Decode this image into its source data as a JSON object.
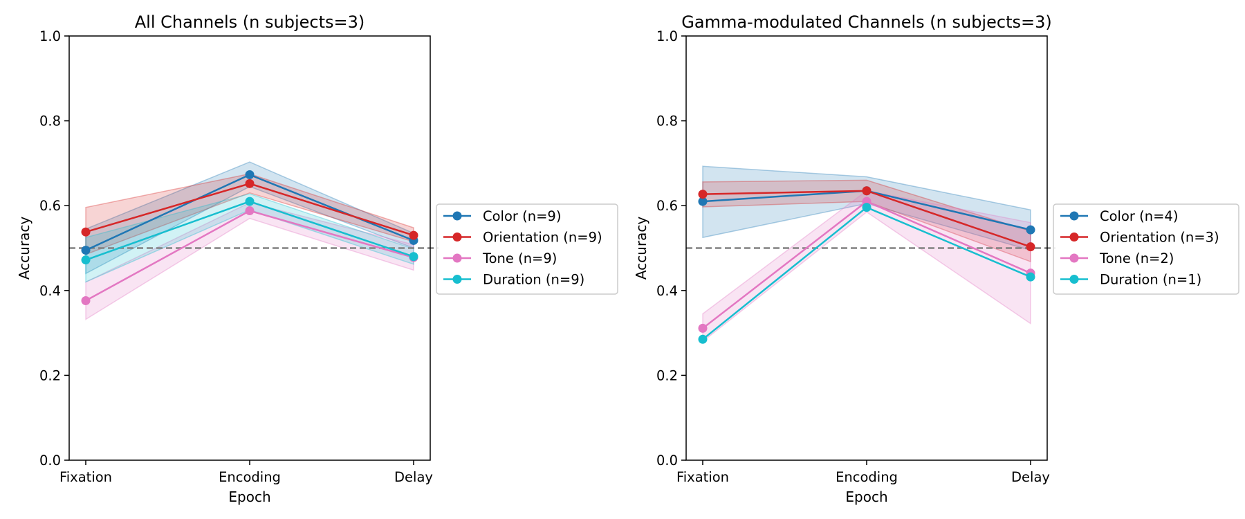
{
  "figure": {
    "background": "#ffffff"
  },
  "style": {
    "chance_color": "#808080"
  },
  "chart_data": [
    {
      "type": "line",
      "title": "All Channels (n subjects=3)",
      "xlabel": "Epoch",
      "ylabel": "Accuracy",
      "categories": [
        "Fixation",
        "Encoding",
        "Delay"
      ],
      "ylim": [
        0,
        1
      ],
      "yticks": [
        "0.0",
        "0.2",
        "0.4",
        "0.6",
        "0.8",
        "1.0"
      ],
      "chance_level": 0.5,
      "legend_position": "outside-right",
      "grid": false,
      "series": [
        {
          "name": "Color (n=9)",
          "color": "#1f77b4",
          "values": [
            0.495,
            0.673,
            0.518
          ],
          "lower": [
            0.44,
            0.645,
            0.5
          ],
          "upper": [
            0.545,
            0.703,
            0.535
          ]
        },
        {
          "name": "Orientation (n=9)",
          "color": "#d62728",
          "values": [
            0.538,
            0.652,
            0.53
          ],
          "lower": [
            0.485,
            0.63,
            0.515
          ],
          "upper": [
            0.596,
            0.675,
            0.548
          ]
        },
        {
          "name": "Tone (n=9)",
          "color": "#e377c2",
          "values": [
            0.376,
            0.588,
            0.478
          ],
          "lower": [
            0.332,
            0.57,
            0.448
          ],
          "upper": [
            0.42,
            0.607,
            0.508
          ]
        },
        {
          "name": "Duration (n=9)",
          "color": "#17becf",
          "values": [
            0.472,
            0.61,
            0.48
          ],
          "lower": [
            0.42,
            0.59,
            0.462
          ],
          "upper": [
            0.525,
            0.628,
            0.498
          ]
        }
      ]
    },
    {
      "type": "line",
      "title": "Gamma-modulated Channels (n subjects=3)",
      "xlabel": "Epoch",
      "ylabel": "Accuracy",
      "categories": [
        "Fixation",
        "Encoding",
        "Delay"
      ],
      "ylim": [
        0,
        1
      ],
      "yticks": [
        "0.0",
        "0.2",
        "0.4",
        "0.6",
        "0.8",
        "1.0"
      ],
      "chance_level": 0.5,
      "legend_position": "outside-right",
      "grid": false,
      "series": [
        {
          "name": "Color (n=4)",
          "color": "#1f77b4",
          "values": [
            0.61,
            0.635,
            0.543
          ],
          "lower": [
            0.525,
            0.605,
            0.495
          ],
          "upper": [
            0.693,
            0.668,
            0.59
          ]
        },
        {
          "name": "Orientation (n=3)",
          "color": "#d62728",
          "values": [
            0.627,
            0.635,
            0.503
          ],
          "lower": [
            0.597,
            0.61,
            0.468
          ],
          "upper": [
            0.656,
            0.66,
            0.54
          ]
        },
        {
          "name": "Tone (n=2)",
          "color": "#e377c2",
          "values": [
            0.311,
            0.61,
            0.441
          ],
          "lower": [
            0.28,
            0.585,
            0.322
          ],
          "upper": [
            0.345,
            0.635,
            0.56
          ]
        },
        {
          "name": "Duration (n=1)",
          "color": "#17becf",
          "values": [
            0.285,
            0.596,
            0.432
          ],
          "lower": null,
          "upper": null
        }
      ]
    }
  ]
}
